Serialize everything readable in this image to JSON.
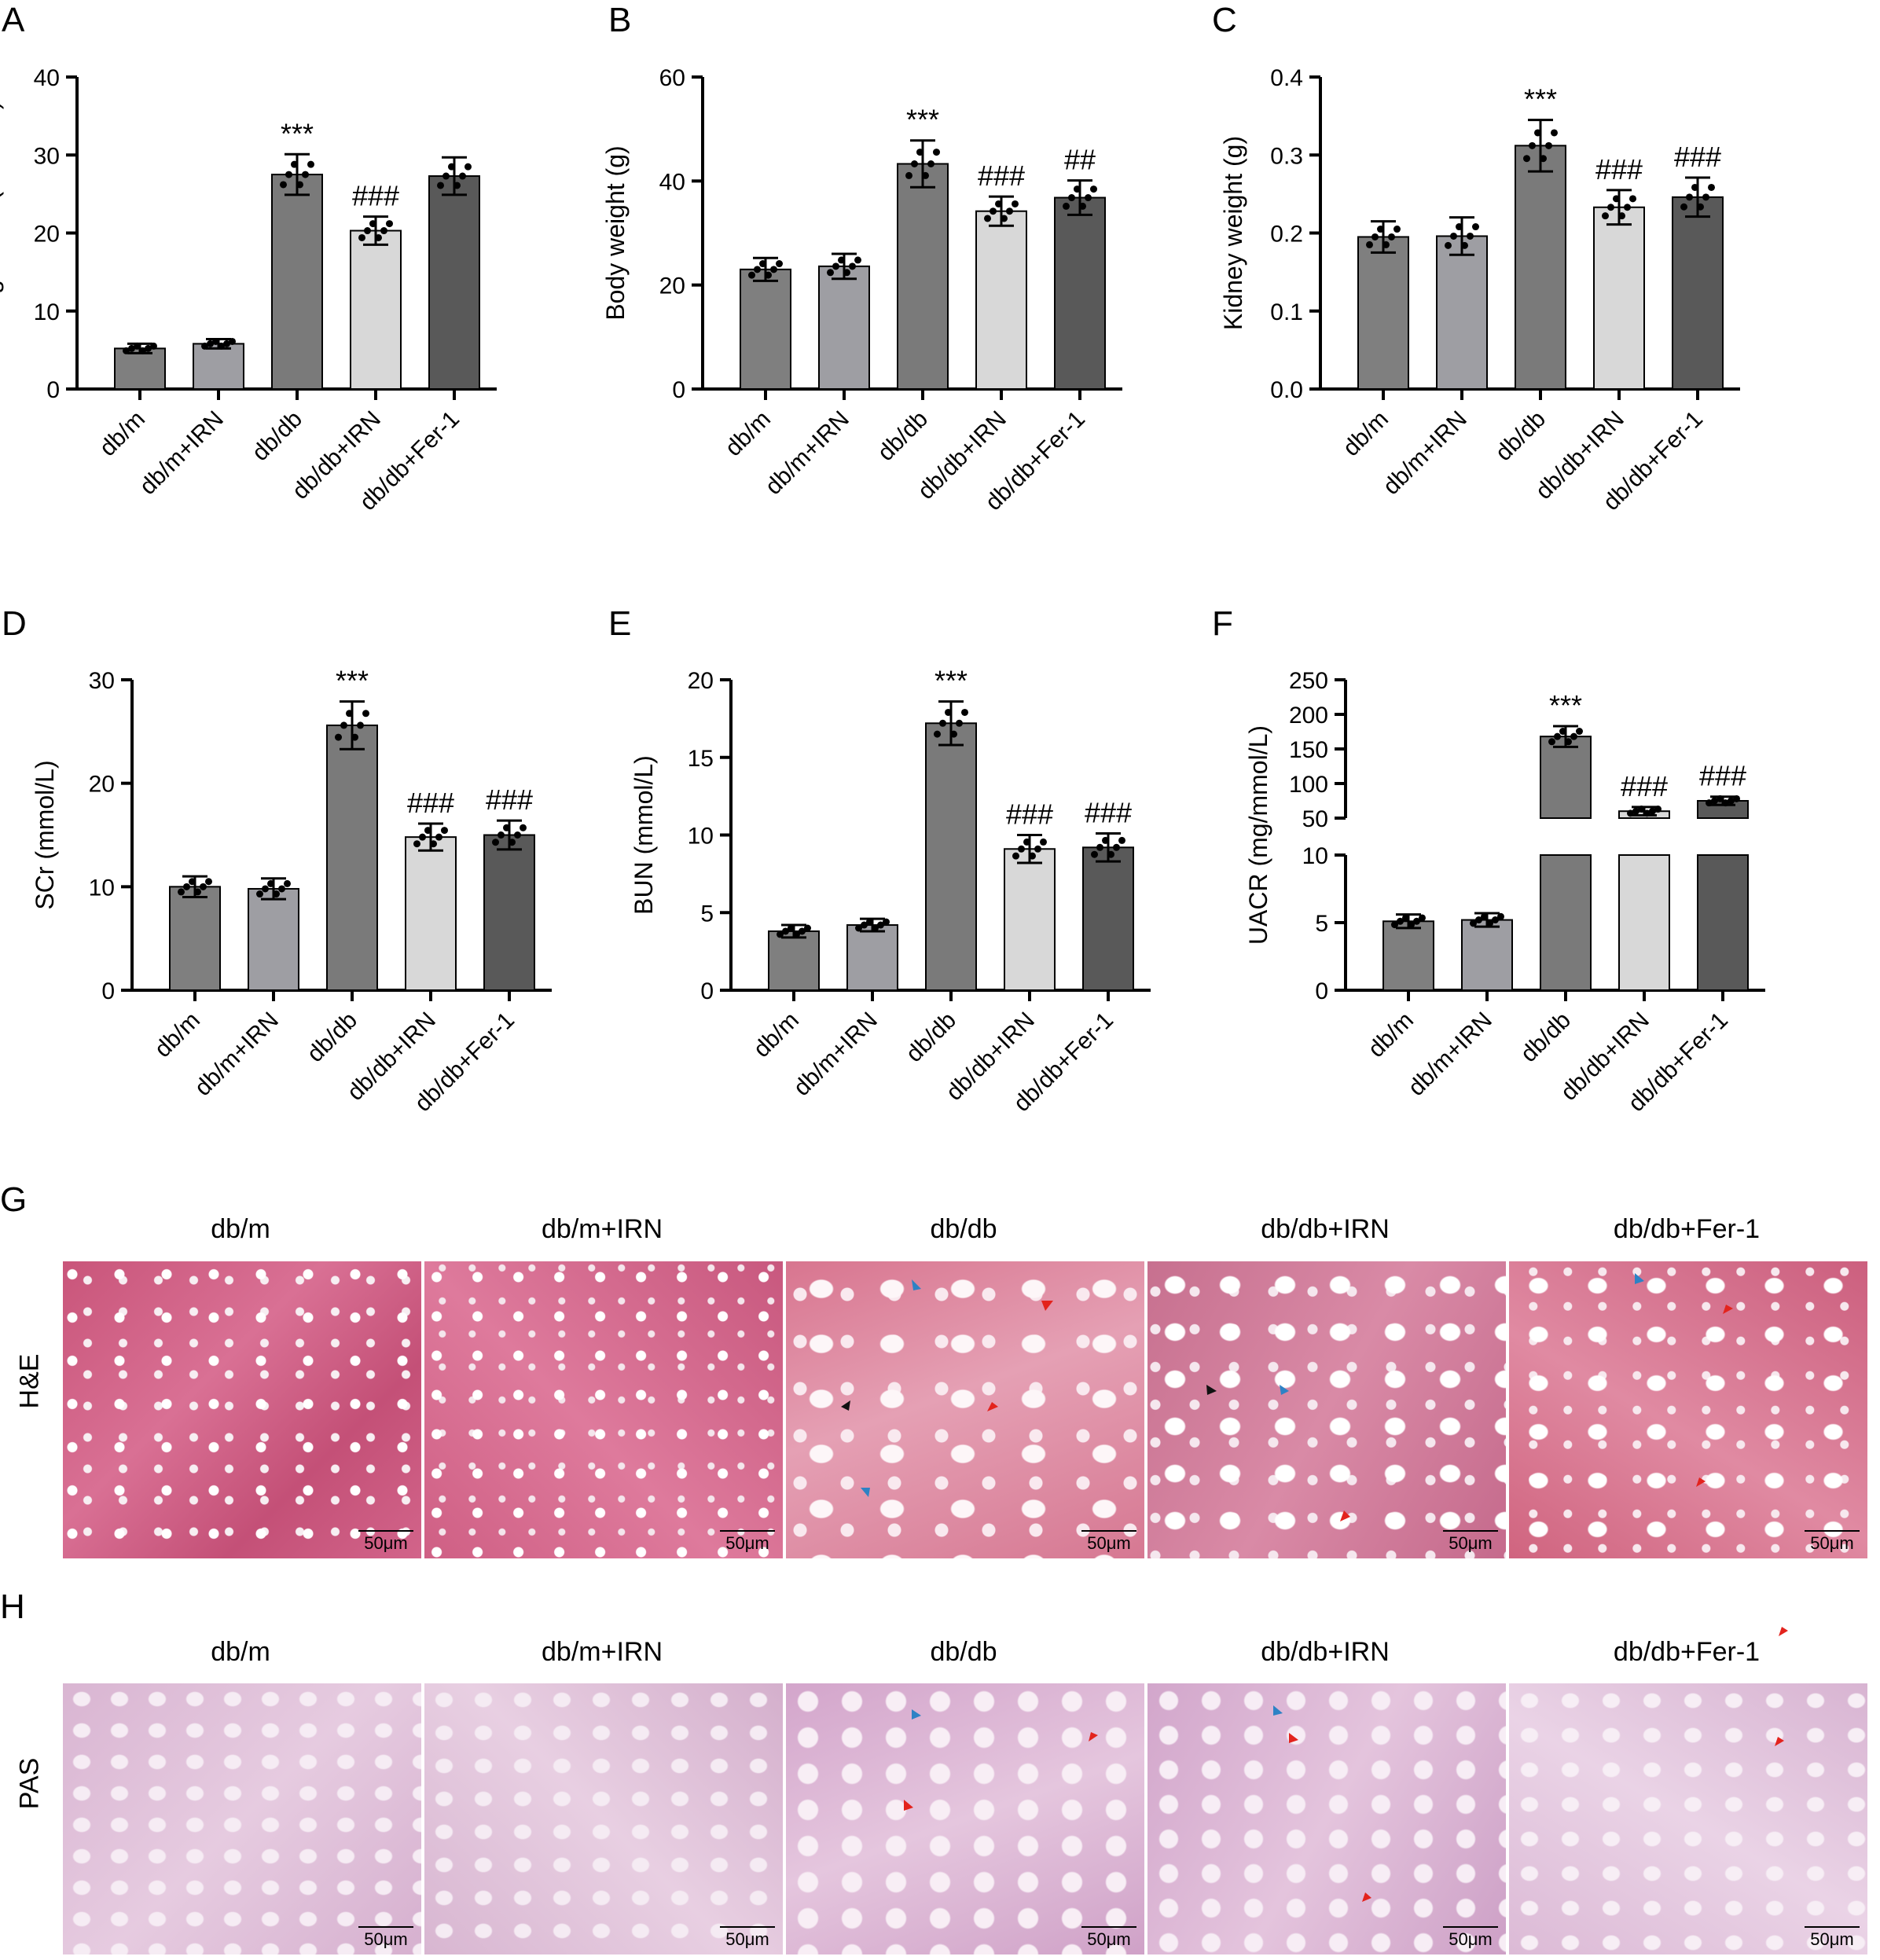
{
  "categories": [
    "db/m",
    "db/m+IRN",
    "db/db",
    "db/db+IRN",
    "db/db+Fer-1"
  ],
  "bar_colors": [
    "#7f7f7f",
    "#9e9ea3",
    "#7a7a7a",
    "#d8d8d8",
    "#595959"
  ],
  "chart_data": [
    {
      "type": "bar",
      "panel": "A",
      "ylabel": "Blood glucose (mmol/L)",
      "ylim": [
        0,
        40
      ],
      "yticks": [
        0,
        10,
        20,
        30,
        40
      ],
      "categories": [
        "db/m",
        "db/m+IRN",
        "db/db",
        "db/db+IRN",
        "db/db+Fer-1"
      ],
      "values": [
        5.2,
        5.8,
        27.5,
        20.3,
        27.3
      ],
      "errors": [
        0.6,
        0.6,
        2.6,
        1.8,
        2.4
      ],
      "annotations": [
        "",
        "",
        "***",
        "###",
        ""
      ]
    },
    {
      "type": "bar",
      "panel": "B",
      "ylabel": "Body weight (g)",
      "ylim": [
        0,
        60
      ],
      "yticks": [
        0,
        20,
        40,
        60
      ],
      "categories": [
        "db/m",
        "db/m+IRN",
        "db/db",
        "db/db+IRN",
        "db/db+Fer-1"
      ],
      "values": [
        23,
        23.6,
        43.3,
        34.2,
        36.8
      ],
      "errors": [
        2.2,
        2.4,
        4.5,
        2.8,
        3.3
      ],
      "annotations": [
        "",
        "",
        "***",
        "###",
        "##"
      ]
    },
    {
      "type": "bar",
      "panel": "C",
      "ylabel": "Kidney weight (g)",
      "ylim": [
        0,
        0.4
      ],
      "yticks": [
        "0.0",
        "0.1",
        "0.2",
        "0.3",
        "0.4"
      ],
      "categories": [
        "db/m",
        "db/m+IRN",
        "db/db",
        "db/db+IRN",
        "db/db+Fer-1"
      ],
      "values": [
        0.195,
        0.196,
        0.312,
        0.233,
        0.246
      ],
      "errors": [
        0.02,
        0.024,
        0.033,
        0.022,
        0.025
      ],
      "annotations": [
        "",
        "",
        "***",
        "###",
        "###"
      ]
    },
    {
      "type": "bar",
      "panel": "D",
      "ylabel": "SCr (mmol/L)",
      "ylim": [
        0,
        30
      ],
      "yticks": [
        0,
        10,
        20,
        30
      ],
      "categories": [
        "db/m",
        "db/m+IRN",
        "db/db",
        "db/db+IRN",
        "db/db+Fer-1"
      ],
      "values": [
        10,
        9.8,
        25.6,
        14.8,
        15
      ],
      "errors": [
        1.0,
        1.0,
        2.3,
        1.3,
        1.4
      ],
      "annotations": [
        "",
        "",
        "***",
        "###",
        "###"
      ]
    },
    {
      "type": "bar",
      "panel": "E",
      "ylabel": "BUN (mmol/L)",
      "ylim": [
        0,
        20
      ],
      "yticks": [
        0,
        5,
        10,
        15,
        20
      ],
      "categories": [
        "db/m",
        "db/m+IRN",
        "db/db",
        "db/db+IRN",
        "db/db+Fer-1"
      ],
      "values": [
        3.8,
        4.2,
        17.2,
        9.1,
        9.2
      ],
      "errors": [
        0.4,
        0.4,
        1.4,
        0.9,
        0.9
      ],
      "annotations": [
        "",
        "",
        "***",
        "###",
        "###"
      ]
    },
    {
      "type": "bar",
      "panel": "F",
      "ylabel": "UACR (mg/mmol/L)",
      "broken_axis": true,
      "yticks_lower": [
        0,
        5,
        10
      ],
      "yticks_upper": [
        50,
        100,
        150,
        200,
        250
      ],
      "categories": [
        "db/m",
        "db/m+IRN",
        "db/db",
        "db/db+IRN",
        "db/db+Fer-1"
      ],
      "values": [
        5.1,
        5.2,
        168,
        60,
        75
      ],
      "errors": [
        0.5,
        0.5,
        15,
        6,
        6
      ],
      "annotations": [
        "",
        "",
        "***",
        "###",
        "###"
      ]
    }
  ],
  "histology": {
    "panel_g": "G",
    "panel_h": "H",
    "row_g_label": "H&E",
    "row_h_label": "PAS",
    "titles": [
      "db/m",
      "db/m+IRN",
      "db/db",
      "db/db+IRN",
      "db/db+Fer-1"
    ],
    "scale_label": "50μm",
    "he_color": "#d66a8a",
    "pas_color": "#e3c3dc"
  }
}
